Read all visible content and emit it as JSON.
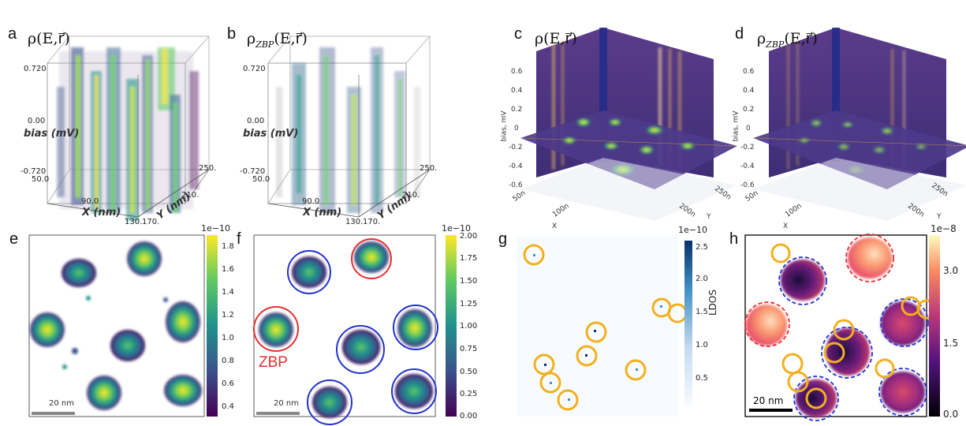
{
  "panels": {
    "a": {
      "letter": "a",
      "title_main": "ρ(E,",
      "title_vec": "r⃗",
      "title_close": ")",
      "z_ticks": [
        "0.720",
        "0.00",
        "-0.720"
      ],
      "z_label": "bias (mV)",
      "x_ticks": [
        "50.0",
        "90.0",
        "130."
      ],
      "x_label": "X (nm)",
      "y_ticks": [
        "170.",
        "210.",
        "250."
      ],
      "y_label": "Y (nm)"
    },
    "b": {
      "letter": "b",
      "title_main": "ρ",
      "title_sub": "ZBP",
      "title_rest": "(E,",
      "title_vec": "r⃗",
      "title_close": ")",
      "z_ticks": [
        "0.720",
        "0.00",
        "-0.720"
      ],
      "z_label": "bias (mV)",
      "x_ticks": [
        "50.0",
        "90.0",
        "130."
      ],
      "x_label": "X (nm)",
      "y_ticks": [
        "170.",
        "210.",
        "250."
      ],
      "y_label": "Y (nm)"
    },
    "c": {
      "letter": "c",
      "title_main": "ρ(E,",
      "title_vec": "r⃗",
      "title_close": ")",
      "z_ticks": [
        "0.6",
        "0.4",
        "0.2",
        "0",
        "-0.2",
        "-0.4",
        "-0.6"
      ],
      "z_label": "bias, mV",
      "x_ticks": [
        "50n",
        "100n"
      ],
      "x_label": "X",
      "y_ticks": [
        "200n",
        "250n"
      ],
      "y_label": "Y"
    },
    "d": {
      "letter": "d",
      "title_main": "ρ",
      "title_sub": "ZBP",
      "title_rest": "(E,",
      "title_vec": "r⃗",
      "title_close": ")",
      "z_ticks": [
        "0.6",
        "0.4",
        "0.2",
        "0",
        "-0.2",
        "-0.4",
        "-0.6"
      ],
      "z_label": "bias, mV",
      "x_ticks": [
        "50n",
        "100n"
      ],
      "x_label": "X",
      "y_ticks": [
        "200n",
        "250n"
      ],
      "y_label": "Y"
    },
    "e": {
      "letter": "e",
      "colorbar_exp": "1e−10",
      "colorbar_ticks": [
        "1.8",
        "1.6",
        "1.4",
        "1.2",
        "1.0",
        "0.8",
        "0.6",
        "0.4"
      ],
      "scalebar": "20 nm"
    },
    "f": {
      "letter": "f",
      "colorbar_exp": "1e−10",
      "colorbar_ticks": [
        "2.00",
        "1.75",
        "1.50",
        "1.25",
        "1.00",
        "0.75",
        "0.50",
        "0.25",
        "0.00"
      ],
      "scalebar": "20 nm",
      "annotation": "ZBP"
    },
    "g": {
      "letter": "g",
      "colorbar_exp": "1e−10",
      "colorbar_ticks": [
        "2.5",
        "2.0",
        "1.5",
        "1.0",
        "0.5"
      ],
      "colorbar_label": "LDOS"
    },
    "h": {
      "letter": "h",
      "colorbar_exp": "1e−8",
      "colorbar_ticks": [
        "3.0",
        "1.5",
        "0.0"
      ],
      "scalebar": "20 nm"
    }
  },
  "colors": {
    "viridis_dark": "#440154",
    "viridis_mid": "#21918c",
    "viridis_bright": "#fde725",
    "ring_red": "#e53030",
    "ring_blue": "#2233cc",
    "ring_orange": "#f2b01e",
    "magma_dark": "#1a0c3a",
    "magma_mid": "#c33a6a",
    "magma_bright": "#fdd2a0",
    "blues_dark": "#08306b",
    "blues_light": "#deebf7"
  }
}
